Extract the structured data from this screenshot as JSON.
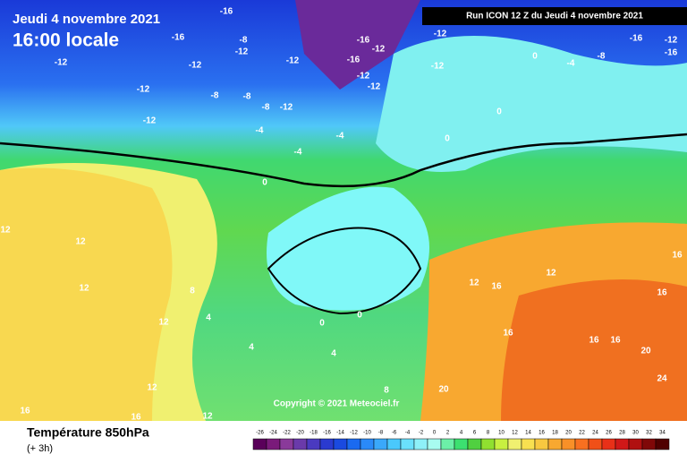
{
  "header": {
    "date": "Jeudi 4 novembre 2021",
    "time": "16:00 locale",
    "run": "Run ICON 12 Z du Jeudi 4 novembre 2021"
  },
  "copyright": "Copyright © 2021 Meteociel.fr",
  "footer": {
    "title": "Température 850hPa",
    "step": "(+ 3h)"
  },
  "legend": {
    "values": [
      -26,
      -24,
      -22,
      -20,
      -18,
      -16,
      -14,
      -12,
      -10,
      -8,
      -6,
      -4,
      -2,
      0,
      2,
      4,
      6,
      8,
      10,
      12,
      14,
      16,
      18,
      20,
      22,
      24,
      26,
      28,
      30,
      32,
      34
    ],
    "colors": [
      "#5a005a",
      "#7a1a7a",
      "#8a3a9a",
      "#6a3aaa",
      "#4a3ac0",
      "#2a3ad0",
      "#1a4ae0",
      "#1a6af0",
      "#2a8af8",
      "#3aa8fa",
      "#4ac8fc",
      "#6ae0fc",
      "#8ef0f8",
      "#a8fcf0",
      "#6cf0a8",
      "#3ce070",
      "#50d040",
      "#90e030",
      "#c8f040",
      "#f0f070",
      "#f8e050",
      "#f8c840",
      "#f8a830",
      "#f89028",
      "#f87020",
      "#f05018",
      "#e83018",
      "#d01818",
      "#b01010",
      "#800808",
      "#500000"
    ]
  },
  "map": {
    "labels": [
      "-12",
      "-12",
      "-12",
      "-16",
      "-12",
      "-16",
      "-8",
      "-12",
      "-8",
      "-8",
      "-8",
      "-12",
      "-12",
      "-16",
      "-12",
      "-16",
      "-12",
      "-12",
      "-12",
      "-12",
      "0",
      "-4",
      "-8",
      "-16",
      "-12",
      "-16",
      "-4",
      "-4",
      "-4",
      "0",
      "0",
      "0",
      "12",
      "12",
      "12",
      "12",
      "12",
      "12",
      "16",
      "16",
      "8",
      "4",
      "4",
      "0",
      "0",
      "16",
      "12",
      "16",
      "16",
      "16",
      "20",
      "24",
      "20",
      "16",
      "16",
      "12",
      "8",
      "4"
    ]
  }
}
